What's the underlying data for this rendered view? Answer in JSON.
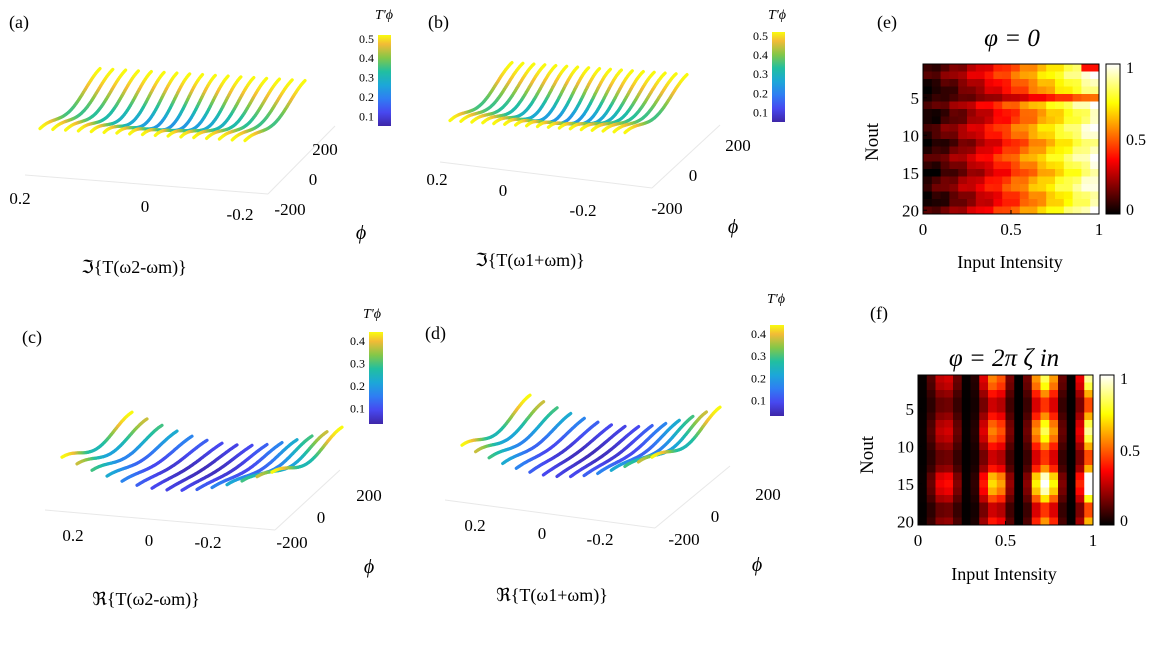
{
  "figure": {
    "panel_labels": [
      "(a)",
      "(b)",
      "(c)",
      "(d)",
      "(e)",
      "(f)"
    ]
  },
  "chart_data": [
    {
      "id": "a",
      "type": "line3d",
      "panel_label": "(a)",
      "xlabel": "ℑ{T(ω2-ωm)}",
      "ylabel": "ϕ",
      "x_ticks": [
        "0.2",
        "0",
        "-0.2"
      ],
      "y_ticks": [
        "200",
        "0",
        "-200"
      ],
      "colorbar": {
        "title": "T'ϕ",
        "ticks": [
          "0.5",
          "0.4",
          "0.3",
          "0.2",
          "0.1"
        ],
        "range": [
          0.05,
          0.52
        ]
      },
      "profile": "bimodal"
    },
    {
      "id": "b",
      "type": "line3d",
      "panel_label": "(b)",
      "xlabel": "ℑ{T(ω1+ωm)}",
      "ylabel": "ϕ",
      "x_ticks": [
        "0.2",
        "0",
        "-0.2"
      ],
      "y_ticks": [
        "200",
        "0",
        "-200"
      ],
      "colorbar": {
        "title": "T'ϕ",
        "ticks": [
          "0.5",
          "0.4",
          "0.3",
          "0.2",
          "0.1"
        ],
        "range": [
          0.05,
          0.52
        ]
      },
      "profile": "bimodal"
    },
    {
      "id": "c",
      "type": "line3d",
      "panel_label": "(c)",
      "xlabel": "ℜ{T(ω2-ωm)}",
      "ylabel": "ϕ",
      "x_ticks": [
        "0.2",
        "0",
        "-0.2"
      ],
      "y_ticks": [
        "200",
        "0",
        "-200"
      ],
      "colorbar": {
        "title": "T'ϕ",
        "ticks": [
          "0.4",
          "0.3",
          "0.2",
          "0.1"
        ],
        "range": [
          0.03,
          0.44
        ]
      },
      "profile": "valley"
    },
    {
      "id": "d",
      "type": "line3d",
      "panel_label": "(d)",
      "xlabel": "ℜ{T(ω1+ωm)}",
      "ylabel": "ϕ",
      "x_ticks": [
        "0.2",
        "0",
        "-0.2"
      ],
      "y_ticks": [
        "200",
        "0",
        "-200"
      ],
      "colorbar": {
        "title": "T'ϕ",
        "ticks": [
          "0.4",
          "0.3",
          "0.2",
          "0.1"
        ],
        "range": [
          0.03,
          0.44
        ]
      },
      "profile": "valley"
    },
    {
      "id": "e",
      "type": "heatmap",
      "panel_label": "(e)",
      "title": "φ = 0",
      "xlabel": "Input Intensity",
      "ylabel": "Nout",
      "x_ticks": [
        "0",
        "0.5",
        "1"
      ],
      "y_ticks": [
        "5",
        "10",
        "15",
        "20"
      ],
      "rows": 20,
      "cols": 20,
      "colorbar": {
        "ticks": [
          "1",
          "0.5",
          "0"
        ],
        "range": [
          0,
          1
        ]
      },
      "pattern": "ramp"
    },
    {
      "id": "f",
      "type": "heatmap",
      "panel_label": "(f)",
      "title": "φ = 2π ζ in",
      "xlabel": "Input Intensity",
      "ylabel": "Nout",
      "x_ticks": [
        "0",
        "0.5",
        "1"
      ],
      "y_ticks": [
        "5",
        "10",
        "15",
        "20"
      ],
      "rows": 20,
      "cols": 20,
      "colorbar": {
        "ticks": [
          "1",
          "0.5",
          "0"
        ],
        "range": [
          0,
          1
        ]
      },
      "pattern": "stripes"
    }
  ]
}
